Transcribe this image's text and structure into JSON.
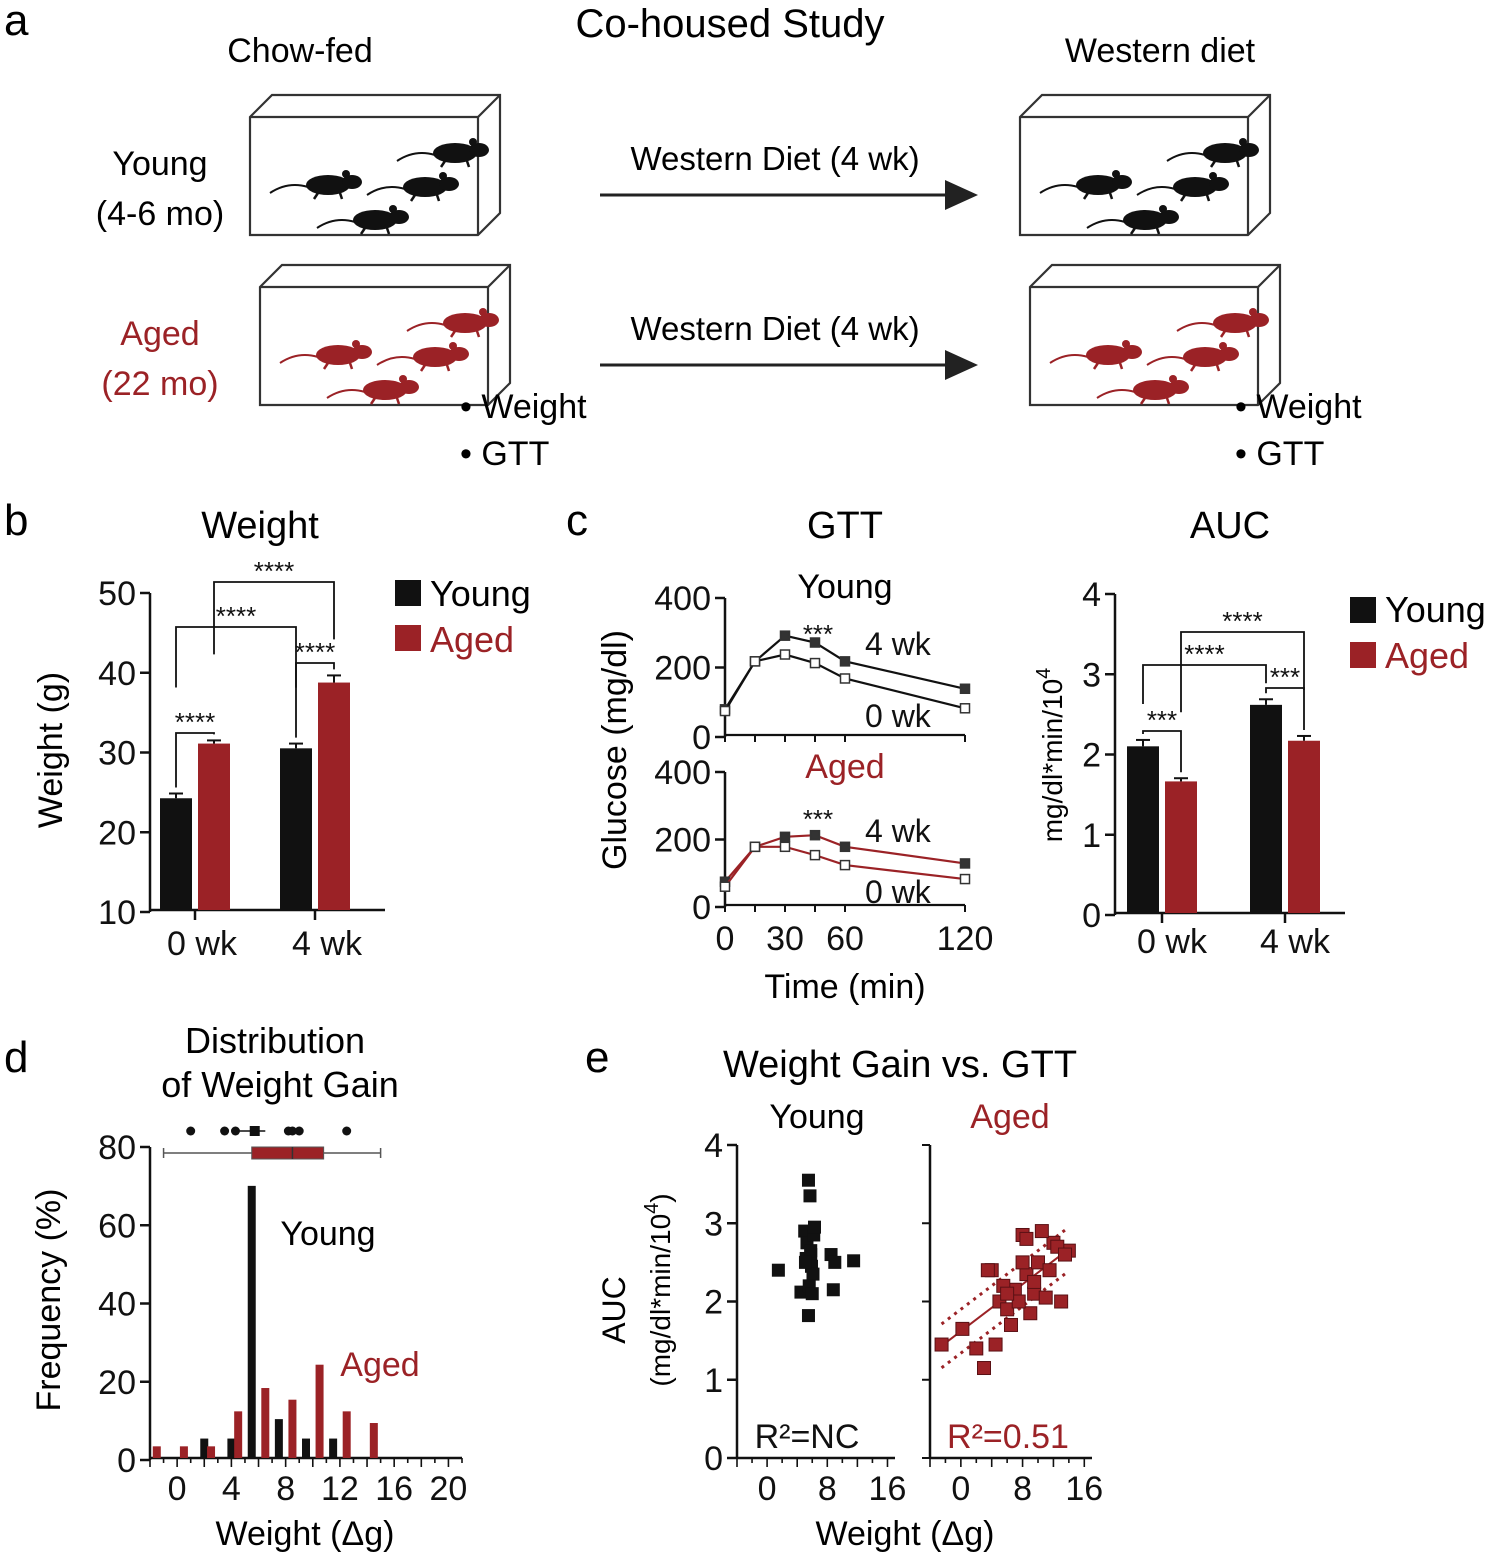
{
  "colors": {
    "young": "#111111",
    "aged": "#9b2226",
    "arrow": "#222222"
  },
  "panel_a": {
    "letter": "a",
    "title": "Co-housed Study",
    "left_header": "Chow-fed",
    "right_header": "Western diet",
    "young_label_1": "Young",
    "young_label_2": "(4-6 mo)",
    "aged_label_1": "Aged",
    "aged_label_2": "(22 mo)",
    "arrow_young": "Western Diet (4 wk)",
    "arrow_aged": "Western Diet (4 wk)",
    "left_bullets": [
      "• Weight",
      "• GTT"
    ],
    "right_bullets": [
      "• Weight",
      "• GTT"
    ]
  },
  "chart_data": [
    {
      "id": "b",
      "letter": "b",
      "type": "bar",
      "title": "Weight",
      "ylabel": "Weight (g)",
      "xlabel": "",
      "ylim": [
        10,
        50
      ],
      "yticks": [
        10,
        20,
        30,
        40,
        50
      ],
      "categories": [
        "0 wk",
        "4 wk"
      ],
      "series": [
        {
          "name": "Young",
          "values": [
            24.1,
            30.4
          ],
          "errors": [
            0.6,
            0.6
          ]
        },
        {
          "name": "Aged",
          "values": [
            31.0,
            38.7
          ],
          "errors": [
            0.4,
            0.9
          ]
        }
      ],
      "significance": [
        "****",
        "****",
        "****",
        "****"
      ],
      "legend": [
        "Young",
        "Aged"
      ]
    },
    {
      "id": "c_gtt",
      "letter": "c",
      "type": "line",
      "title": "GTT",
      "ylabel": "Glucose (mg/dl)",
      "xlabel": "Time (min)",
      "x": [
        0,
        15,
        30,
        45,
        60,
        120
      ],
      "xticks": [
        0,
        30,
        60,
        120
      ],
      "ylim": [
        0,
        400
      ],
      "yticks": [
        0,
        200,
        400
      ],
      "panels": [
        {
          "name": "Young",
          "series": [
            {
              "name": "4 wk",
              "values": [
                75,
                215,
                290,
                270,
                215,
                135
              ]
            },
            {
              "name": "0 wk",
              "values": [
                70,
                215,
                235,
                210,
                165,
                78
              ]
            }
          ],
          "significance": "***"
        },
        {
          "name": "Aged",
          "series": [
            {
              "name": "4 wk",
              "values": [
                70,
                175,
                205,
                210,
                175,
                125
              ]
            },
            {
              "name": "0 wk",
              "values": [
                55,
                175,
                175,
                150,
                120,
                78
              ]
            }
          ],
          "significance": "***"
        }
      ]
    },
    {
      "id": "c_auc",
      "type": "bar",
      "title": "AUC",
      "ylabel": "mg/dl*min/10",
      "ylabel_sup": "4",
      "xlabel": "",
      "ylim": [
        0,
        4
      ],
      "yticks": [
        0,
        1,
        2,
        3,
        4
      ],
      "categories": [
        "0 wk",
        "4 wk"
      ],
      "series": [
        {
          "name": "Young",
          "values": [
            2.09,
            2.61
          ],
          "errors": [
            0.08,
            0.07
          ]
        },
        {
          "name": "Aged",
          "values": [
            1.65,
            2.16
          ],
          "errors": [
            0.04,
            0.06
          ]
        }
      ],
      "significance": [
        "***",
        "***",
        "****",
        "****"
      ],
      "legend": [
        "Young",
        "Aged"
      ]
    },
    {
      "id": "d",
      "letter": "d",
      "type": "bar",
      "title_1": "Distribution",
      "title_2": "of Weight Gain",
      "ylabel": "Frequency (%)",
      "xlabel": "Weight (Δg)",
      "xlim": [
        -2,
        21
      ],
      "xticks": [
        0,
        4,
        8,
        12,
        16,
        20
      ],
      "ylim": [
        0,
        80
      ],
      "yticks": [
        0,
        20,
        40,
        60,
        80
      ],
      "series": [
        {
          "name": "Young",
          "x": [
            2,
            4,
            5.5,
            7.5,
            9.5,
            11.5
          ],
          "values": [
            5,
            5,
            70,
            10,
            5,
            5
          ]
        },
        {
          "name": "Aged",
          "x": [
            -1.5,
            0.5,
            2.5,
            4.5,
            6.5,
            8.5,
            10.5,
            12.5,
            14.5
          ],
          "values": [
            3,
            3,
            3,
            12,
            18,
            15,
            24,
            12,
            9
          ]
        }
      ],
      "boxplots": [
        {
          "name": "Young",
          "whisker_low": 4.5,
          "q1": 5.5,
          "median": 6.0,
          "q3": 6.3,
          "whisker_high": 6.5,
          "outliers": [
            1,
            3.5,
            4.3,
            8.2,
            8.5,
            9.0,
            12.5
          ]
        },
        {
          "name": "Aged",
          "whisker_low": -1,
          "q1": 5.5,
          "median": 8.5,
          "q3": 10.8,
          "whisker_high": 15
        }
      ],
      "annotations": [
        "Young",
        "Aged"
      ]
    },
    {
      "id": "e",
      "letter": "e",
      "type": "scatter",
      "title": "Weight Gain vs. GTT",
      "ylabel_1": "AUC",
      "ylabel_2": "(mg/dl*min/10",
      "ylabel_sup": "4",
      "ylabel_close": ")",
      "xlabel": "Weight (Δg)",
      "xlim": [
        -4,
        17
      ],
      "xticks": [
        0,
        8,
        16
      ],
      "ylim": [
        0,
        4
      ],
      "yticks": [
        0,
        1,
        2,
        3,
        4
      ],
      "panels": [
        {
          "name": "Young",
          "r2": "R²=NC",
          "x": [
            1.5,
            4.5,
            5.5,
            5.7,
            5.0,
            5.3,
            5.8,
            6.2,
            5.2,
            5.9,
            6.1,
            5.6,
            6.0,
            8.5,
            9.0,
            11.5,
            8.8,
            5.5,
            6.3,
            5.8,
            5.1
          ],
          "y": [
            2.4,
            2.12,
            3.55,
            3.35,
            2.9,
            2.75,
            2.6,
            2.85,
            2.55,
            2.45,
            2.35,
            2.2,
            2.1,
            2.6,
            2.5,
            2.52,
            2.15,
            1.82,
            2.95,
            2.65,
            2.5
          ]
        },
        {
          "name": "Aged",
          "r2": "R²=0.51",
          "x": [
            -2.5,
            0.2,
            2.0,
            3.0,
            4.5,
            5.0,
            6.0,
            4.0,
            7.0,
            8.0,
            9.0,
            8.5,
            10.0,
            9.5,
            11.0,
            12.0,
            13.0,
            14.0,
            12.5,
            10.5,
            8.0,
            6.5,
            5.5,
            3.5,
            7.5,
            9.5,
            11.5,
            13.5,
            6.0,
            8.5
          ],
          "y": [
            1.45,
            1.65,
            1.4,
            1.15,
            1.45,
            2.0,
            1.9,
            2.4,
            2.15,
            2.85,
            1.85,
            2.35,
            2.5,
            2.1,
            2.05,
            2.75,
            2.0,
            2.65,
            2.7,
            2.9,
            2.5,
            1.7,
            2.2,
            2.4,
            2.0,
            2.25,
            2.4,
            2.6,
            2.1,
            2.8
          ]
        }
      ],
      "fit": {
        "slope": 0.075,
        "intercept": 1.62,
        "ci_offset": 0.28
      }
    }
  ]
}
